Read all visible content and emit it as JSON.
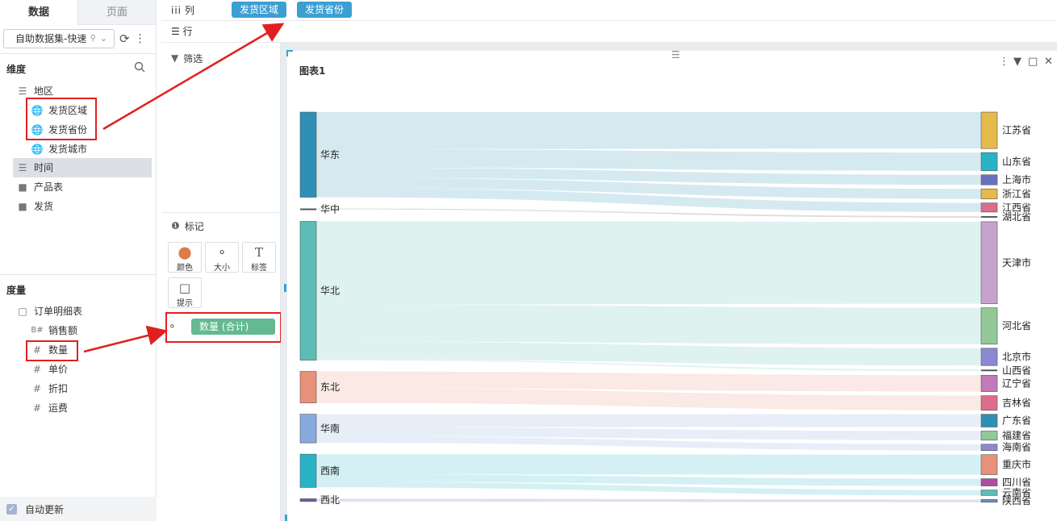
{
  "left_panel": {
    "tabs": [
      "数据",
      "页面"
    ],
    "dataset": "自助数据集-快速",
    "dimensions_title": "维度",
    "dimensions": [
      {
        "label": "地区",
        "icon": "layers-icon",
        "level": 0
      },
      {
        "label": "发货区域",
        "icon": "globe-icon",
        "level": 1
      },
      {
        "label": "发货省份",
        "icon": "globe-icon",
        "level": 1
      },
      {
        "label": "发货城市",
        "icon": "globe-icon",
        "level": 1
      },
      {
        "label": "时间",
        "icon": "layers-icon",
        "level": 0
      },
      {
        "label": "产品表",
        "icon": "folder-icon",
        "level": 0
      },
      {
        "label": "发货",
        "icon": "folder-icon",
        "level": 0
      }
    ],
    "measures_title": "度量",
    "measures": [
      {
        "label": "订单明细表",
        "icon": "folder-open-icon",
        "level": 0
      },
      {
        "label": "销售额",
        "icon": "hash-icon",
        "level": 1
      },
      {
        "label": "数量",
        "icon": "hash-icon",
        "level": 1
      },
      {
        "label": "单价",
        "icon": "hash-icon",
        "level": 1
      },
      {
        "label": "折扣",
        "icon": "hash-icon",
        "level": 1
      },
      {
        "label": "运费",
        "icon": "hash-icon",
        "level": 1
      }
    ],
    "auto_update": "自动更新"
  },
  "shelves": {
    "column_label": "列",
    "row_label": "行",
    "column_fields": [
      "发货区域",
      "发货省份"
    ]
  },
  "middle_panel": {
    "filter_label": "筛选",
    "marks_label": "标记",
    "mark_buttons": [
      "颜色",
      "大小",
      "标签",
      "提示"
    ],
    "size_field": "数量 (合计)"
  },
  "chart": {
    "title": "图表1",
    "colors": {
      "accent": "#3c9fd3",
      "pill_green": "#64b990",
      "highlight_red": "#e02020"
    }
  },
  "chart_data": {
    "type": "sankey",
    "title": "图表1",
    "sources": [
      {
        "name": "华东",
        "color": "#2f8fb5",
        "value": 92
      },
      {
        "name": "华中",
        "color": "#555555",
        "value": 1
      },
      {
        "name": "华北",
        "color": "#5cbdb5",
        "value": 150
      },
      {
        "name": "东北",
        "color": "#e8907a",
        "value": 34
      },
      {
        "name": "华南",
        "color": "#88a9dd",
        "value": 31
      },
      {
        "name": "西南",
        "color": "#2ab3c6",
        "value": 36
      },
      {
        "name": "西北",
        "color": "#6b5fa6",
        "value": 3
      }
    ],
    "targets": [
      {
        "name": "江苏省",
        "color": "#e5b94a",
        "value": 40
      },
      {
        "name": "山东省",
        "color": "#2ab3c6",
        "value": 20
      },
      {
        "name": "上海市",
        "color": "#6970c0",
        "value": 11
      },
      {
        "name": "浙江省",
        "color": "#e5b94a",
        "value": 11
      },
      {
        "name": "江西省",
        "color": "#dc6e8d",
        "value": 10
      },
      {
        "name": "湖北省",
        "color": "#555555",
        "value": 1
      },
      {
        "name": "天津市",
        "color": "#c8a2ce",
        "value": 90
      },
      {
        "name": "河北省",
        "color": "#94c897",
        "value": 40
      },
      {
        "name": "北京市",
        "color": "#8b89d4",
        "value": 19
      },
      {
        "name": "山西省",
        "color": "#555555",
        "value": 1
      },
      {
        "name": "辽宁省",
        "color": "#c27ab8",
        "value": 18
      },
      {
        "name": "吉林省",
        "color": "#dc6e8d",
        "value": 16
      },
      {
        "name": "广东省",
        "color": "#2f8fb5",
        "value": 14
      },
      {
        "name": "福建省",
        "color": "#94c897",
        "value": 10
      },
      {
        "name": "海南省",
        "color": "#8b89d4",
        "value": 7
      },
      {
        "name": "重庆市",
        "color": "#e8907a",
        "value": 22
      },
      {
        "name": "四川省",
        "color": "#b24ca2",
        "value": 8
      },
      {
        "name": "云南省",
        "color": "#5cbdb5",
        "value": 6
      },
      {
        "name": "陕西省",
        "color": "#6b8fc8",
        "value": 3
      }
    ],
    "links": [
      {
        "source": "华东",
        "target": "江苏省",
        "value": 40
      },
      {
        "source": "华东",
        "target": "山东省",
        "value": 20
      },
      {
        "source": "华东",
        "target": "上海市",
        "value": 11
      },
      {
        "source": "华东",
        "target": "浙江省",
        "value": 11
      },
      {
        "source": "华东",
        "target": "江西省",
        "value": 10
      },
      {
        "source": "华中",
        "target": "湖北省",
        "value": 1
      },
      {
        "source": "华北",
        "target": "天津市",
        "value": 90
      },
      {
        "source": "华北",
        "target": "河北省",
        "value": 40
      },
      {
        "source": "华北",
        "target": "北京市",
        "value": 19
      },
      {
        "source": "华北",
        "target": "山西省",
        "value": 1
      },
      {
        "source": "东北",
        "target": "辽宁省",
        "value": 18
      },
      {
        "source": "东北",
        "target": "吉林省",
        "value": 16
      },
      {
        "source": "华南",
        "target": "广东省",
        "value": 14
      },
      {
        "source": "华南",
        "target": "福建省",
        "value": 10
      },
      {
        "source": "华南",
        "target": "海南省",
        "value": 7
      },
      {
        "source": "西南",
        "target": "重庆市",
        "value": 22
      },
      {
        "source": "西南",
        "target": "四川省",
        "value": 8
      },
      {
        "source": "西南",
        "target": "云南省",
        "value": 6
      },
      {
        "source": "西北",
        "target": "陕西省",
        "value": 3
      }
    ]
  }
}
